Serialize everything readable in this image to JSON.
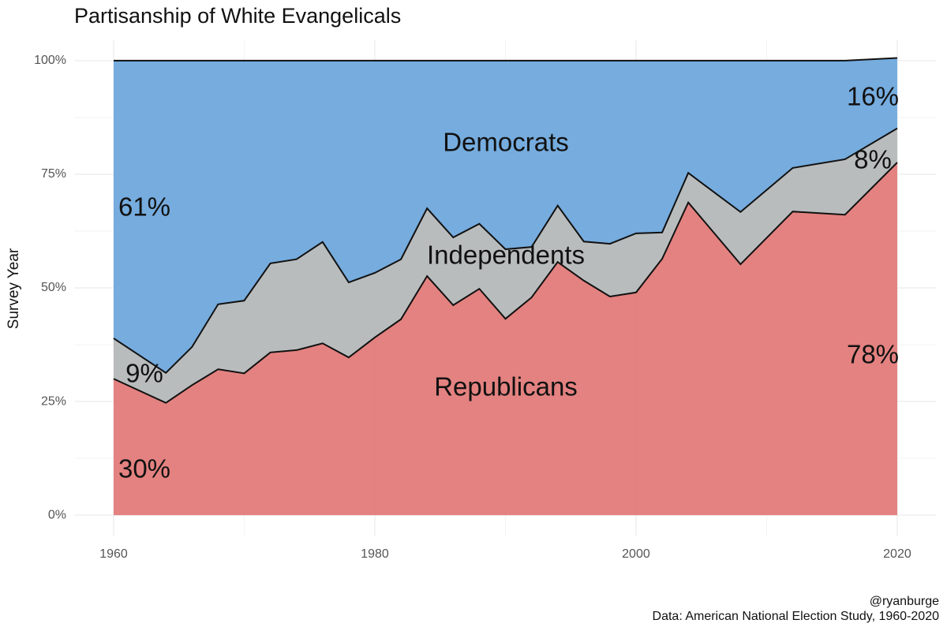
{
  "chart_data": {
    "type": "stacked-area",
    "title": "Partisanship of White Evangelicals",
    "y_label": "Survey Year",
    "caption": [
      "@ryanburge",
      "Data: American National Election Study, 1960-2020"
    ],
    "x": [
      1960,
      1964,
      1966,
      1968,
      1970,
      1972,
      1974,
      1976,
      1978,
      1980,
      1982,
      1984,
      1986,
      1988,
      1990,
      1992,
      1994,
      1996,
      1998,
      2000,
      2002,
      2004,
      2008,
      2012,
      2016,
      2020
    ],
    "series": [
      {
        "name": "Republicans",
        "color": "#e17b79",
        "values": [
          30.0,
          24.7,
          28.6,
          32.1,
          31.2,
          35.8,
          36.3,
          37.8,
          34.7,
          39.1,
          43.1,
          52.6,
          46.2,
          49.8,
          43.2,
          47.9,
          55.7,
          51.6,
          48.1,
          49.0,
          56.4,
          68.8,
          55.2,
          66.8,
          66.1,
          77.6
        ],
        "value_labels": [
          "30%",
          null,
          null,
          null,
          null,
          null,
          null,
          null,
          null,
          null,
          null,
          null,
          null,
          null,
          null,
          null,
          null,
          null,
          null,
          null,
          null,
          null,
          null,
          null,
          null,
          "78%"
        ]
      },
      {
        "name": "Independents",
        "color": "#b5b8b9",
        "values": [
          8.9,
          6.6,
          8.4,
          14.3,
          16.0,
          19.6,
          20.0,
          22.3,
          16.5,
          14.2,
          13.2,
          14.9,
          14.9,
          14.3,
          15.3,
          11.1,
          12.4,
          8.6,
          11.6,
          13.0,
          5.8,
          6.5,
          11.5,
          9.6,
          12.2,
          7.5
        ],
        "value_labels": [
          "9%",
          null,
          null,
          null,
          null,
          null,
          null,
          null,
          null,
          null,
          null,
          null,
          null,
          null,
          null,
          null,
          null,
          null,
          null,
          null,
          null,
          null,
          null,
          null,
          null,
          "8%"
        ]
      },
      {
        "name": "Democrats",
        "color": "#6fa8dc",
        "values": [
          61.1,
          68.7,
          63.0,
          53.6,
          52.8,
          44.6,
          43.7,
          39.9,
          48.8,
          46.7,
          43.7,
          32.5,
          38.9,
          35.9,
          41.5,
          41.0,
          31.9,
          39.8,
          40.3,
          38.0,
          37.8,
          24.7,
          33.3,
          23.6,
          21.7,
          15.5
        ],
        "value_labels": [
          "61%",
          null,
          null,
          null,
          null,
          null,
          null,
          null,
          null,
          null,
          null,
          null,
          null,
          null,
          null,
          null,
          null,
          null,
          null,
          null,
          null,
          null,
          null,
          null,
          null,
          "16%"
        ]
      }
    ],
    "xlim": [
      1957,
      2023
    ],
    "xticks": [
      1960,
      1980,
      2000,
      2020
    ],
    "ylim": [
      -4.5,
      104.5
    ],
    "yticks": [
      {
        "value": 0,
        "label": "0%"
      },
      {
        "value": 25,
        "label": "25%"
      },
      {
        "value": 50,
        "label": "50%"
      },
      {
        "value": 75,
        "label": "75%"
      },
      {
        "value": 100,
        "label": "100%"
      }
    ],
    "grid": true
  }
}
